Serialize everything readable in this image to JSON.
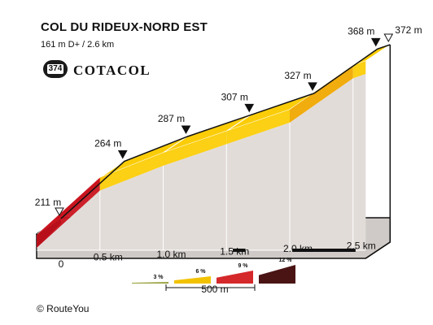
{
  "header": {
    "title": "COL DU RIDEUX-NORD EST",
    "subtitle": "161 m D+ / 2.6 km",
    "badge_number": "374",
    "brand": "COTACOL",
    "copyright": "© RouteYou"
  },
  "chart_data": {
    "type": "area",
    "title": "COL DU RIDEUX-NORD EST",
    "x_unit": "km",
    "y_unit": "m",
    "x_ticks": [
      "0",
      "0.5 km",
      "1.0 km",
      "1.5 km",
      "2.0 km",
      "2.5 km"
    ],
    "x_tick_values": [
      0,
      0.5,
      1.0,
      1.5,
      2.0,
      2.5
    ],
    "xlim": [
      0,
      2.6
    ],
    "profile": [
      {
        "km": 0.0,
        "m": 211
      },
      {
        "km": 0.5,
        "m": 264
      },
      {
        "km": 1.0,
        "m": 287
      },
      {
        "km": 1.5,
        "m": 307
      },
      {
        "km": 2.0,
        "m": 327
      },
      {
        "km": 2.5,
        "m": 368
      },
      {
        "km": 2.6,
        "m": 372
      }
    ],
    "segments": [
      {
        "from_km": 0.0,
        "to_km": 0.5,
        "grade_class": "9 %"
      },
      {
        "from_km": 0.5,
        "to_km": 1.0,
        "grade_class": "6 %"
      },
      {
        "from_km": 1.0,
        "to_km": 1.5,
        "grade_class": "6 %"
      },
      {
        "from_km": 1.5,
        "to_km": 2.0,
        "grade_class": "6 %"
      },
      {
        "from_km": 2.0,
        "to_km": 2.5,
        "grade_class": "9 %"
      },
      {
        "from_km": 2.5,
        "to_km": 2.6,
        "grade_class": "6 %"
      }
    ],
    "markers": [
      {
        "km": 0.0,
        "label": "211 m",
        "style": "hollow"
      },
      {
        "km": 0.5,
        "label": "264 m",
        "style": "filled"
      },
      {
        "km": 1.0,
        "label": "287 m",
        "style": "filled"
      },
      {
        "km": 1.5,
        "label": "307 m",
        "style": "filled"
      },
      {
        "km": 2.0,
        "label": "327 m",
        "style": "filled"
      },
      {
        "km": 2.5,
        "label": "368 m",
        "style": "filled"
      },
      {
        "km": 2.6,
        "label": "372 m",
        "style": "hollow"
      }
    ],
    "flat_markers_km": [
      [
        1.55,
        1.65
      ],
      [
        2.02,
        2.52
      ]
    ],
    "legend": {
      "grades": [
        {
          "label": "3 %",
          "color": "#9aa240"
        },
        {
          "label": "6 %",
          "color": "#f2c200"
        },
        {
          "label": "9 %",
          "color": "#d5282a"
        },
        {
          "label": "12 %",
          "color": "#4a1414"
        }
      ],
      "scale_label": "500 m"
    },
    "colors": {
      "grade_3": "#9aa240",
      "grade_6": "#fbcd08",
      "grade_9": "#c9141f",
      "grade_12": "#4a1414",
      "steep_orange": "#f0a800",
      "wall": "#e2dcd9",
      "base": "#c8c4c1"
    }
  }
}
